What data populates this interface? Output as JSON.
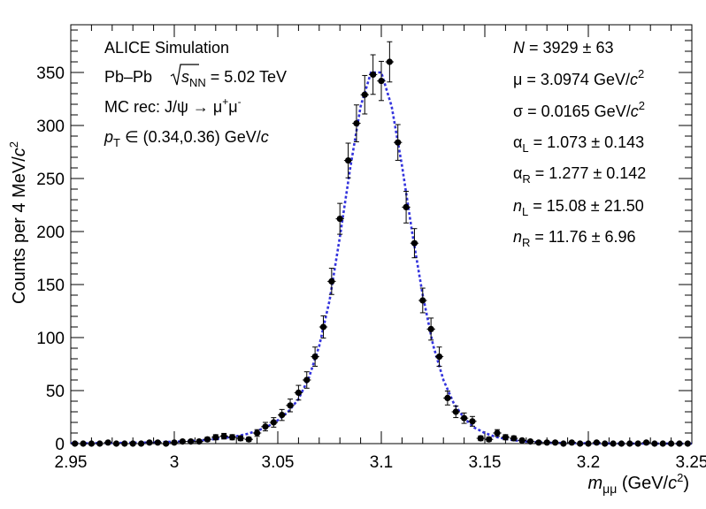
{
  "chart_data": {
    "type": "scatter",
    "x_axis": {
      "range": [
        2.95,
        3.25
      ],
      "major_ticks": [
        2.95,
        3.0,
        3.05,
        3.1,
        3.15,
        3.2,
        3.25
      ],
      "tick_labels": [
        "2.95",
        "3",
        "3.05",
        "3.1",
        "3.15",
        "3.2",
        "3.25"
      ],
      "title_main": "m",
      "title_sub": "μμ",
      "title_unit": " (GeV/",
      "title_c": "c",
      "title_sup": "2",
      "title_close": ")"
    },
    "y_axis": {
      "range": [
        0,
        395
      ],
      "major_ticks": [
        0,
        50,
        100,
        150,
        200,
        250,
        300,
        350
      ],
      "tick_labels": [
        "0",
        "50",
        "100",
        "150",
        "200",
        "250",
        "300",
        "350"
      ],
      "title_main": "Counts per 4 MeV/",
      "title_c": "c",
      "title_sup": "2"
    },
    "grid": false,
    "annotations_left": {
      "line1": "ALICE Simulation",
      "line2_a": "Pb–Pb ",
      "line2_sqrt_s": "s",
      "line2_sub": "NN",
      "line2_b": " = 5.02 TeV",
      "line3_a": "MC rec: J/ψ → μ",
      "line3_sup1": "+",
      "line3_b": "μ",
      "line3_sup2": "-",
      "line4_p": "p",
      "line4_sub": "T",
      "line4_b": " ∈ (0.34,0.36) GeV/",
      "line4_c": "c"
    },
    "fit_params": {
      "N_label": "N",
      "N_value": " = 3929 ± 63",
      "mu_value": "μ = 3.0974 GeV/",
      "sigma_value": "σ = 0.0165 GeV/",
      "c": "c",
      "sup2": "2",
      "alphaL_a": "α",
      "alphaL_sub": "L",
      "alphaL_b": " = 1.073 ± 0.143",
      "alphaR_a": "α",
      "alphaR_sub": "R",
      "alphaR_b": " = 1.277 ± 0.142",
      "nL_a": "n",
      "nL_sub": "L",
      "nL_b": " = 15.08 ± 21.50",
      "nR_a": "n",
      "nR_sub": "R",
      "nR_b": " = 11.76 ± 6.96"
    },
    "bin_width": 0.004,
    "x": [
      2.952,
      2.956,
      2.96,
      2.964,
      2.968,
      2.972,
      2.976,
      2.98,
      2.984,
      2.988,
      2.992,
      2.996,
      3.0,
      3.004,
      3.008,
      3.012,
      3.016,
      3.02,
      3.024,
      3.028,
      3.032,
      3.036,
      3.04,
      3.044,
      3.048,
      3.052,
      3.056,
      3.06,
      3.064,
      3.068,
      3.072,
      3.076,
      3.08,
      3.084,
      3.088,
      3.092,
      3.096,
      3.1,
      3.104,
      3.108,
      3.112,
      3.116,
      3.12,
      3.124,
      3.128,
      3.132,
      3.136,
      3.14,
      3.144,
      3.148,
      3.152,
      3.156,
      3.16,
      3.164,
      3.168,
      3.172,
      3.176,
      3.18,
      3.184,
      3.188,
      3.192,
      3.196,
      3.2,
      3.204,
      3.208,
      3.212,
      3.216,
      3.22,
      3.224,
      3.228,
      3.232,
      3.236,
      3.24,
      3.244,
      3.248
    ],
    "counts": [
      0,
      0,
      0,
      0,
      1,
      0,
      0,
      0,
      0,
      1,
      1,
      0,
      1,
      2,
      2,
      2,
      4,
      6,
      7,
      6,
      5,
      4,
      10,
      16,
      20,
      27,
      36,
      48,
      60,
      82,
      110,
      153,
      212,
      267,
      302,
      329,
      348,
      342,
      360,
      284,
      223,
      189,
      135,
      108,
      82,
      43,
      30,
      24,
      21,
      5,
      4,
      10,
      6,
      5,
      3,
      2,
      1,
      1,
      1,
      0,
      1,
      0,
      0,
      1,
      0,
      0,
      0,
      0,
      0,
      1,
      0,
      0,
      0,
      0,
      0
    ],
    "fit_curve": {
      "x": [
        2.95,
        2.955,
        2.96,
        2.965,
        2.97,
        2.975,
        2.98,
        2.985,
        2.99,
        2.995,
        3.0,
        3.005,
        3.01,
        3.015,
        3.02,
        3.025,
        3.03,
        3.035,
        3.04,
        3.045,
        3.05,
        3.055,
        3.06,
        3.065,
        3.07,
        3.075,
        3.08,
        3.085,
        3.09,
        3.095,
        3.1,
        3.105,
        3.11,
        3.115,
        3.12,
        3.125,
        3.13,
        3.135,
        3.14,
        3.145,
        3.15,
        3.155,
        3.16,
        3.165,
        3.17,
        3.175,
        3.18,
        3.185,
        3.19,
        3.195,
        3.2,
        3.205,
        3.21,
        3.215,
        3.22,
        3.225,
        3.23,
        3.235,
        3.24,
        3.245,
        3.25
      ],
      "y": [
        0.3,
        0.3,
        0.4,
        0.5,
        0.6,
        0.7,
        0.8,
        1.0,
        1.2,
        1.5,
        1.8,
        2.2,
        2.7,
        3.4,
        4.3,
        5.5,
        7.0,
        9.0,
        12,
        16,
        22,
        30,
        42,
        62,
        92,
        135,
        195,
        260,
        318,
        350,
        350,
        318,
        262,
        198,
        140,
        93,
        60,
        38,
        24,
        15,
        10,
        6.5,
        4.3,
        2.9,
        2.0,
        1.4,
        1.0,
        0.7,
        0.5,
        0.4,
        0.3,
        0.2,
        0.2,
        0.1,
        0.1,
        0.1,
        0.1,
        0.1,
        0.0,
        0.0,
        0.0
      ]
    },
    "colors": {
      "points": "#000000",
      "fit": "#3333dd"
    }
  }
}
